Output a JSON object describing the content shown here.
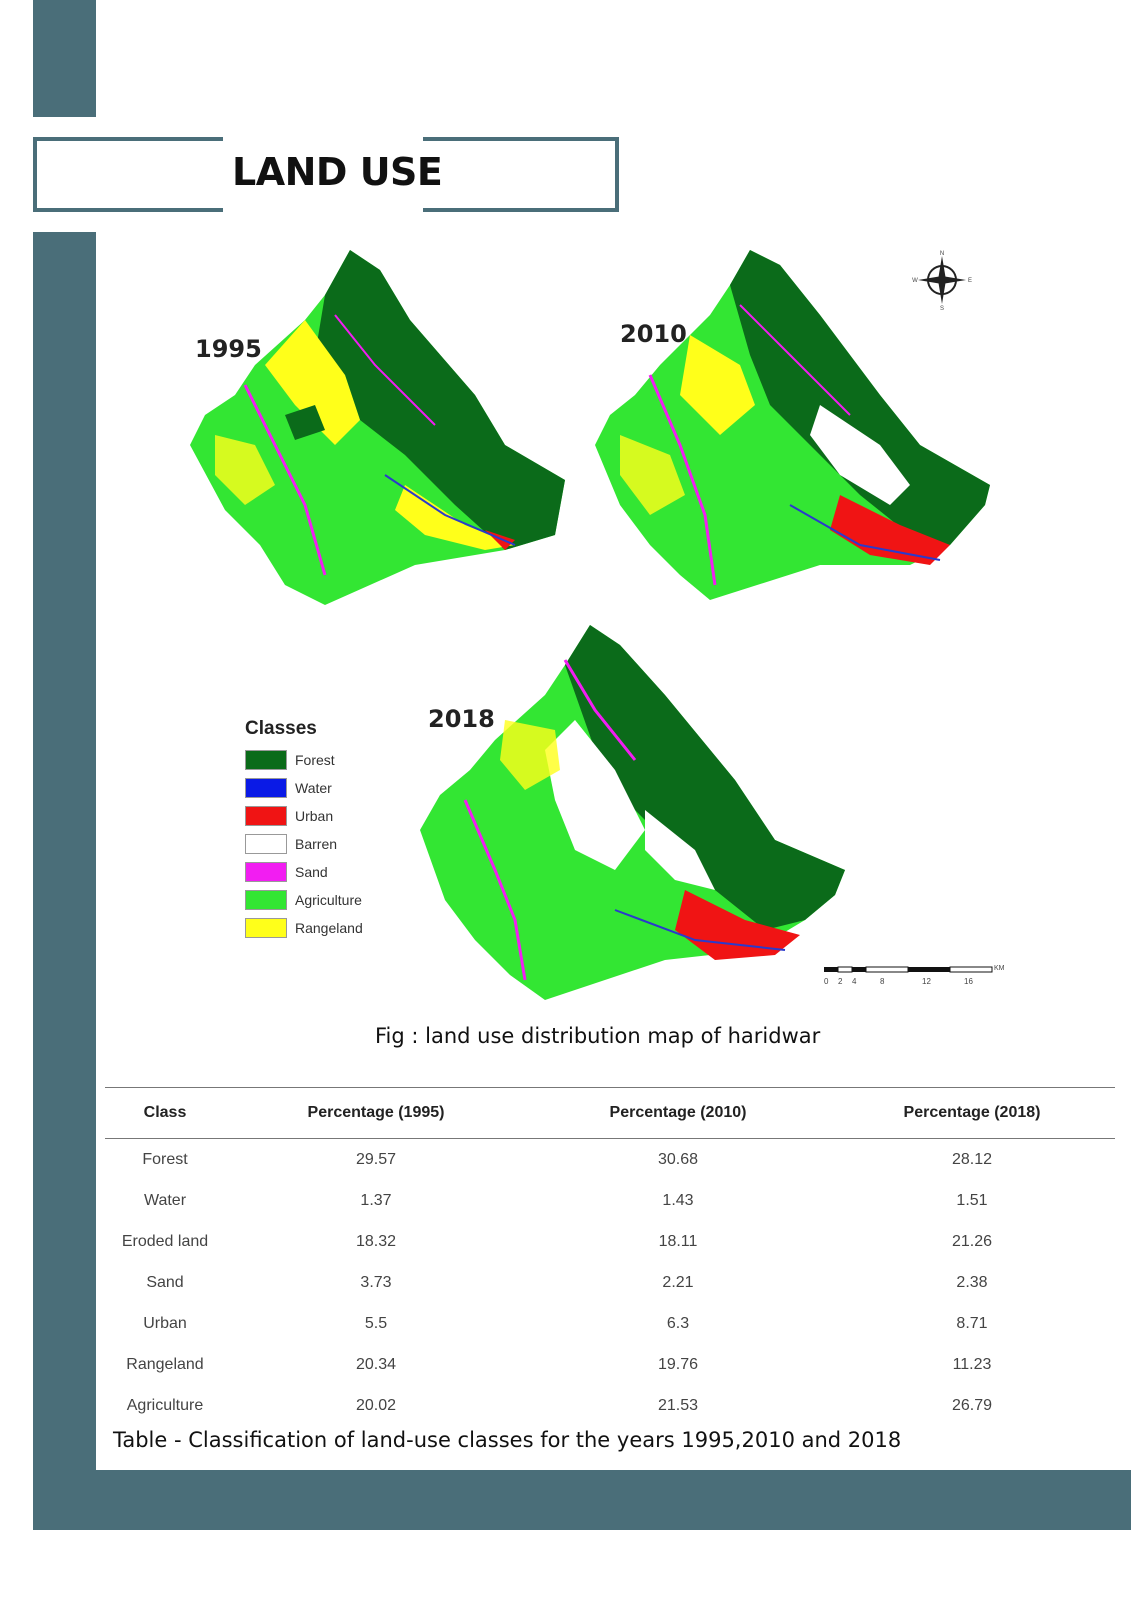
{
  "header": {
    "title": "LAND USE"
  },
  "maps": [
    {
      "year": "1995"
    },
    {
      "year": "2010"
    },
    {
      "year": "2018"
    }
  ],
  "legend": {
    "title": "Classes",
    "items": [
      {
        "label": "Forest",
        "color": "#0b6b1a"
      },
      {
        "label": "Water",
        "color": "#0a1ae6"
      },
      {
        "label": "Urban",
        "color": "#f01414"
      },
      {
        "label": "Barren",
        "color": "#ffffff"
      },
      {
        "label": "Sand",
        "color": "#f21df2"
      },
      {
        "label": "Agriculture",
        "color": "#33e633"
      },
      {
        "label": "Rangeland",
        "color": "#ffff1a"
      }
    ]
  },
  "compass": {
    "n": "N",
    "s": "S",
    "e": "E",
    "w": "W"
  },
  "scale": {
    "unit": "KM",
    "ticks": [
      "0",
      "2",
      "4",
      "8",
      "12",
      "16"
    ]
  },
  "figure_caption": "Fig : land use distribution map of haridwar",
  "table": {
    "headers": [
      "Class",
      "Percentage (1995)",
      "Percentage (2010)",
      "Percentage (2018)"
    ],
    "rows": [
      [
        "Forest",
        "29.57",
        "30.68",
        "28.12"
      ],
      [
        "Water",
        "1.37",
        "1.43",
        "1.51"
      ],
      [
        "Eroded land",
        "18.32",
        "18.11",
        "21.26"
      ],
      [
        "Sand",
        "3.73",
        "2.21",
        "2.38"
      ],
      [
        "Urban",
        "5.5",
        "6.3",
        "8.71"
      ],
      [
        "Rangeland",
        "20.34",
        "19.76",
        "11.23"
      ],
      [
        "Agriculture",
        "20.02",
        "21.53",
        "26.79"
      ]
    ]
  },
  "table_caption": "Table - Classification of land-use classes for the years 1995,2010 and 2018",
  "colors": {
    "accent": "#4a6e79"
  }
}
